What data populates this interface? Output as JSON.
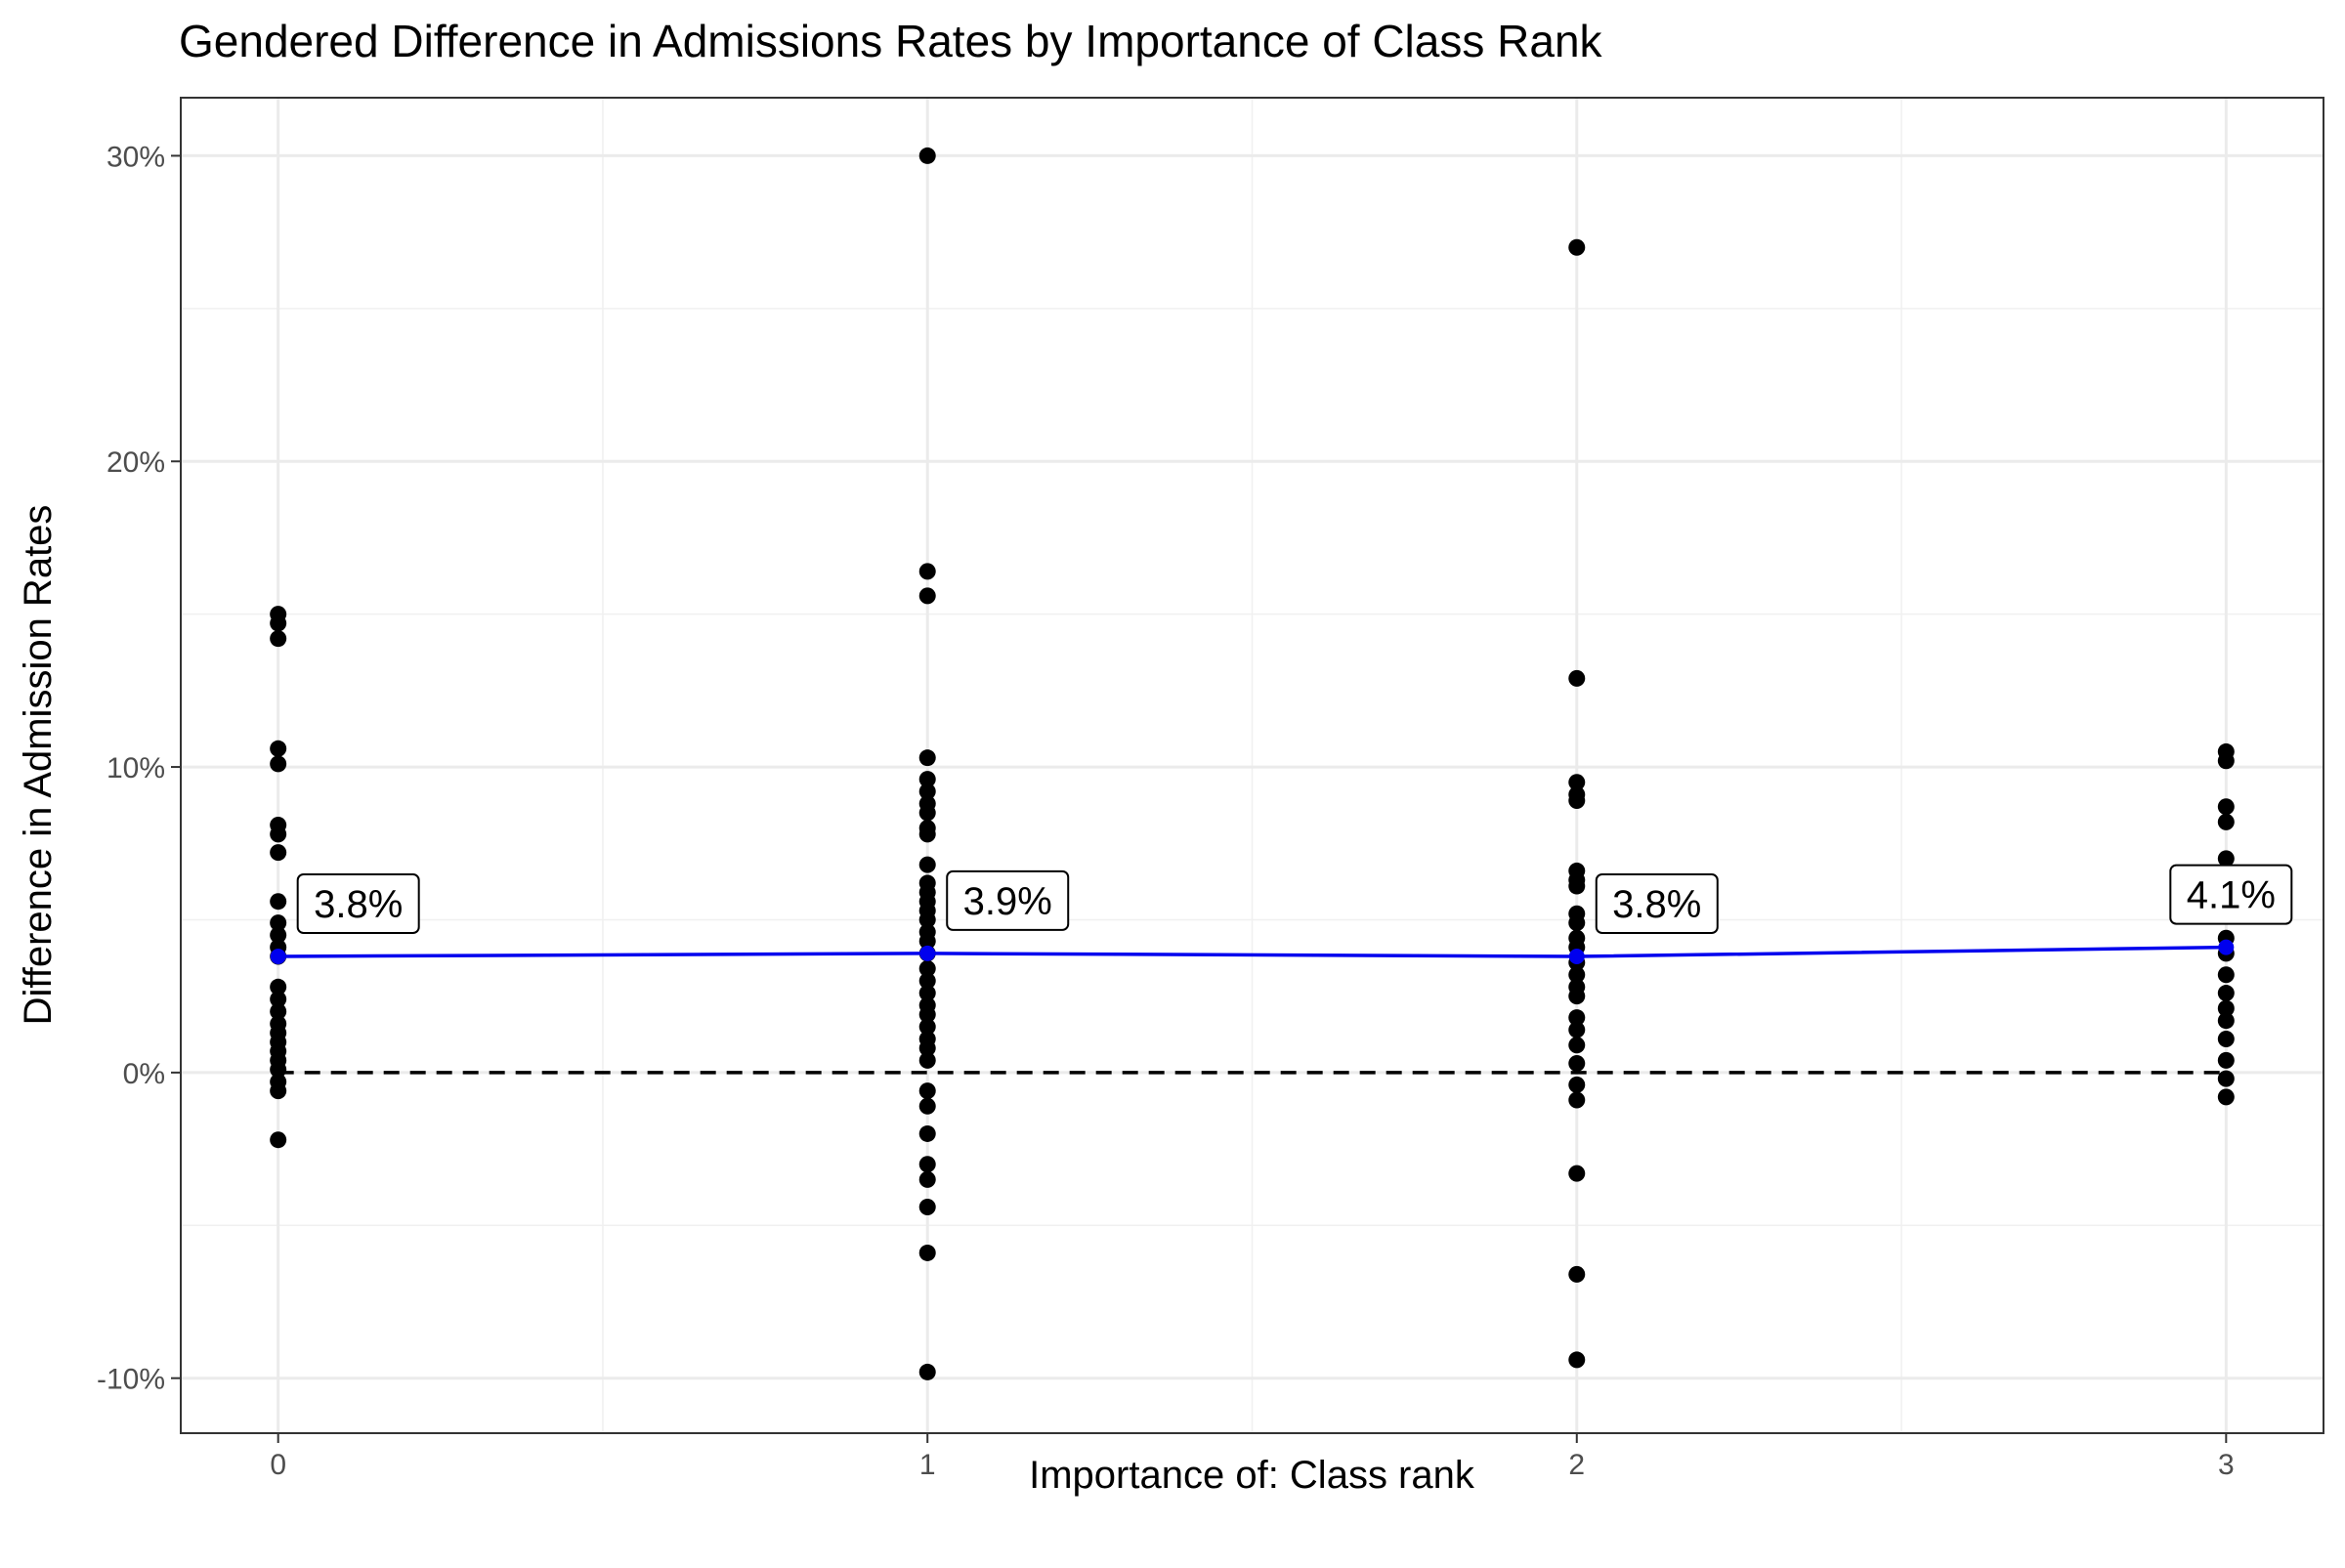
{
  "chart_data": {
    "type": "scatter",
    "title": "Gendered Difference in Admissions Rates by Importance of Class Rank",
    "xlabel": "Importance of: Class rank",
    "ylabel": "Difference in Admission Rates",
    "xlim": [
      -0.15,
      3.15
    ],
    "ylim": [
      -11.8,
      31.9
    ],
    "x_ticks": [
      0,
      1,
      2,
      3
    ],
    "x_tick_labels": [
      "0",
      "1",
      "2",
      "3"
    ],
    "y_ticks": [
      -10,
      0,
      10,
      20,
      30
    ],
    "y_tick_labels": [
      "-10%",
      "0%",
      "10%",
      "20%",
      "30%"
    ],
    "grid": true,
    "reference_line": {
      "y": 0,
      "style": "dashed",
      "color": "#000000"
    },
    "point_color": "#000000",
    "mean_color": "#0000ee",
    "points": [
      {
        "x": 0,
        "y": 15.0
      },
      {
        "x": 0,
        "y": 14.7
      },
      {
        "x": 0,
        "y": 14.2
      },
      {
        "x": 0,
        "y": 10.6
      },
      {
        "x": 0,
        "y": 10.1
      },
      {
        "x": 0,
        "y": 8.1
      },
      {
        "x": 0,
        "y": 7.8
      },
      {
        "x": 0,
        "y": 7.2
      },
      {
        "x": 0,
        "y": 5.6
      },
      {
        "x": 0,
        "y": 4.9
      },
      {
        "x": 0,
        "y": 4.5
      },
      {
        "x": 0,
        "y": 4.1
      },
      {
        "x": 0,
        "y": 3.8
      },
      {
        "x": 0,
        "y": 2.8
      },
      {
        "x": 0,
        "y": 2.4
      },
      {
        "x": 0,
        "y": 2.0
      },
      {
        "x": 0,
        "y": 1.6
      },
      {
        "x": 0,
        "y": 1.3
      },
      {
        "x": 0,
        "y": 1.0
      },
      {
        "x": 0,
        "y": 0.7
      },
      {
        "x": 0,
        "y": 0.4
      },
      {
        "x": 0,
        "y": 0.1
      },
      {
        "x": 0,
        "y": -0.3
      },
      {
        "x": 0,
        "y": -0.6
      },
      {
        "x": 0,
        "y": -2.2
      },
      {
        "x": 1,
        "y": 30.0
      },
      {
        "x": 1,
        "y": 16.4
      },
      {
        "x": 1,
        "y": 15.6
      },
      {
        "x": 1,
        "y": 10.3
      },
      {
        "x": 1,
        "y": 9.6
      },
      {
        "x": 1,
        "y": 9.2
      },
      {
        "x": 1,
        "y": 8.8
      },
      {
        "x": 1,
        "y": 8.5
      },
      {
        "x": 1,
        "y": 8.0
      },
      {
        "x": 1,
        "y": 7.8
      },
      {
        "x": 1,
        "y": 6.8
      },
      {
        "x": 1,
        "y": 6.2
      },
      {
        "x": 1,
        "y": 5.9
      },
      {
        "x": 1,
        "y": 5.6
      },
      {
        "x": 1,
        "y": 5.3
      },
      {
        "x": 1,
        "y": 5.0
      },
      {
        "x": 1,
        "y": 4.6
      },
      {
        "x": 1,
        "y": 4.3
      },
      {
        "x": 1,
        "y": 3.9
      },
      {
        "x": 1,
        "y": 3.4
      },
      {
        "x": 1,
        "y": 3.0
      },
      {
        "x": 1,
        "y": 2.6
      },
      {
        "x": 1,
        "y": 2.2
      },
      {
        "x": 1,
        "y": 1.9
      },
      {
        "x": 1,
        "y": 1.5
      },
      {
        "x": 1,
        "y": 1.1
      },
      {
        "x": 1,
        "y": 0.8
      },
      {
        "x": 1,
        "y": 0.4
      },
      {
        "x": 1,
        "y": -0.6
      },
      {
        "x": 1,
        "y": -1.1
      },
      {
        "x": 1,
        "y": -2.0
      },
      {
        "x": 1,
        "y": -3.0
      },
      {
        "x": 1,
        "y": -3.5
      },
      {
        "x": 1,
        "y": -4.4
      },
      {
        "x": 1,
        "y": -5.9
      },
      {
        "x": 1,
        "y": -9.8
      },
      {
        "x": 2,
        "y": 27.0
      },
      {
        "x": 2,
        "y": 12.9
      },
      {
        "x": 2,
        "y": 9.5
      },
      {
        "x": 2,
        "y": 9.1
      },
      {
        "x": 2,
        "y": 8.9
      },
      {
        "x": 2,
        "y": 6.6
      },
      {
        "x": 2,
        "y": 6.3
      },
      {
        "x": 2,
        "y": 6.1
      },
      {
        "x": 2,
        "y": 5.2
      },
      {
        "x": 2,
        "y": 4.9
      },
      {
        "x": 2,
        "y": 4.4
      },
      {
        "x": 2,
        "y": 4.1
      },
      {
        "x": 2,
        "y": 3.6
      },
      {
        "x": 2,
        "y": 3.2
      },
      {
        "x": 2,
        "y": 2.8
      },
      {
        "x": 2,
        "y": 2.5
      },
      {
        "x": 2,
        "y": 1.8
      },
      {
        "x": 2,
        "y": 1.4
      },
      {
        "x": 2,
        "y": 0.9
      },
      {
        "x": 2,
        "y": 0.3
      },
      {
        "x": 2,
        "y": -0.4
      },
      {
        "x": 2,
        "y": -0.9
      },
      {
        "x": 2,
        "y": -3.3
      },
      {
        "x": 2,
        "y": -6.6
      },
      {
        "x": 2,
        "y": -9.4
      },
      {
        "x": 3,
        "y": 10.5
      },
      {
        "x": 3,
        "y": 10.2
      },
      {
        "x": 3,
        "y": 8.7
      },
      {
        "x": 3,
        "y": 8.2
      },
      {
        "x": 3,
        "y": 7.0
      },
      {
        "x": 3,
        "y": 5.9
      },
      {
        "x": 3,
        "y": 4.4
      },
      {
        "x": 3,
        "y": 3.9
      },
      {
        "x": 3,
        "y": 3.2
      },
      {
        "x": 3,
        "y": 2.6
      },
      {
        "x": 3,
        "y": 2.1
      },
      {
        "x": 3,
        "y": 1.7
      },
      {
        "x": 3,
        "y": 1.1
      },
      {
        "x": 3,
        "y": 0.4
      },
      {
        "x": 3,
        "y": -0.2
      },
      {
        "x": 3,
        "y": -0.8
      }
    ],
    "means": [
      {
        "x": 0,
        "y": 3.8,
        "label": "3.8%"
      },
      {
        "x": 1,
        "y": 3.9,
        "label": "3.9%"
      },
      {
        "x": 2,
        "y": 3.8,
        "label": "3.8%"
      },
      {
        "x": 3,
        "y": 4.1,
        "label": "4.1%"
      }
    ]
  }
}
